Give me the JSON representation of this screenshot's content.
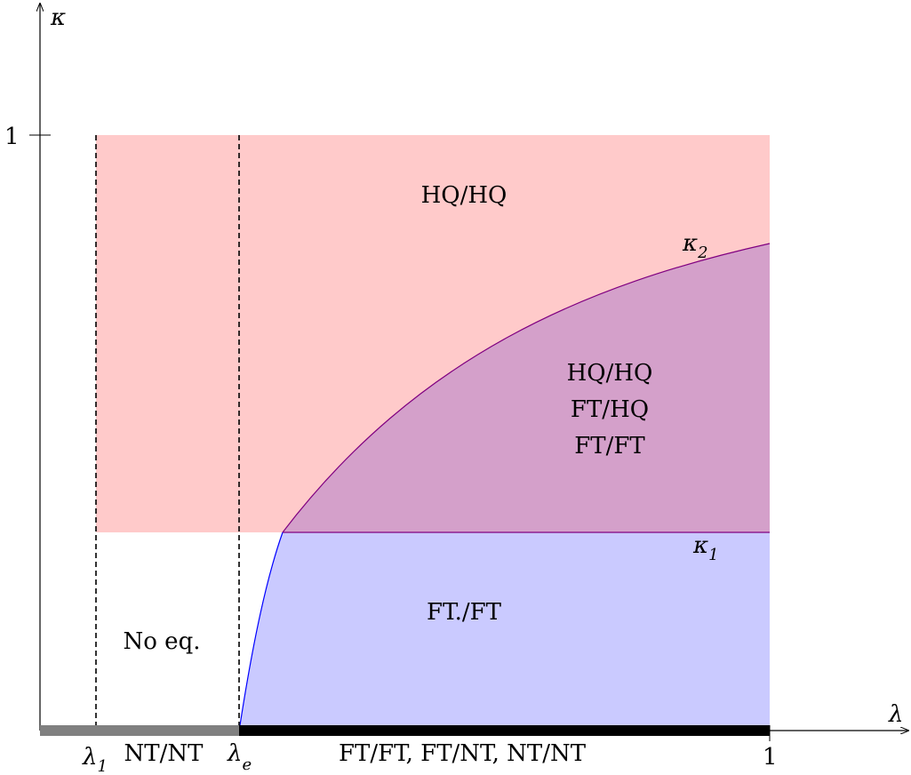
{
  "axes": {
    "x_label": "λ",
    "y_label": "κ",
    "y_tick": "1",
    "x_tick": "1"
  },
  "thresholds": {
    "lambda_1": {
      "symbol": "λ",
      "subscript": "1"
    },
    "lambda_e": {
      "symbol": "λ",
      "subscript": "e"
    },
    "kappa_1": {
      "symbol": "κ",
      "subscript": "1"
    },
    "kappa_2": {
      "symbol": "κ",
      "subscript": "2"
    }
  },
  "regions": {
    "upper": "HQ/HQ",
    "overlap": [
      "HQ/HQ",
      "FT/HQ",
      "FT/FT"
    ],
    "lower": "FT./FT",
    "no_eq": "No eq."
  },
  "bottom_bar": {
    "left_label": "NT/NT",
    "right_label": "FT/FT, FT/NT, NT/NT"
  },
  "colors": {
    "pink_region": "#ffcaca",
    "purple_region": "#d4a0ca",
    "blue_region": "#cacaff",
    "kappa2_curve": "#800080",
    "blue_curve": "#0000ff",
    "bar_gray": "#808080",
    "bar_black": "#000000"
  }
}
